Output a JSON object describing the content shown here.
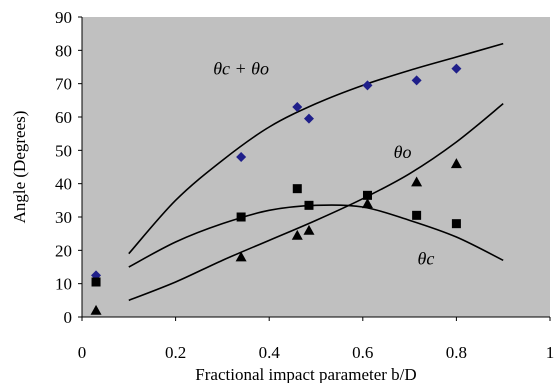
{
  "chart_data": {
    "type": "scatter",
    "xlabel": "Fractional impact parameter b/D",
    "ylabel": "Angle (Degrees)",
    "xlim": [
      0,
      1
    ],
    "ylim": [
      0,
      90
    ],
    "x_ticks": [
      "0",
      "0.2",
      "0.4",
      "0.6",
      "0.8",
      "1"
    ],
    "y_ticks": [
      "0",
      "10",
      "20",
      "30",
      "40",
      "50",
      "60",
      "70",
      "80",
      "90"
    ],
    "plot_background": "#c0c0c0",
    "grid": false,
    "series": [
      {
        "marker": "diamond",
        "color": "#1f1f8a",
        "x": [
          0.03,
          0.34,
          0.46,
          0.485,
          0.61,
          0.715,
          0.8
        ],
        "y": [
          12.5,
          48,
          63,
          59.5,
          69.5,
          71,
          74.5
        ]
      },
      {
        "marker": "square",
        "color": "#000000",
        "x": [
          0.03,
          0.34,
          0.46,
          0.485,
          0.61,
          0.715,
          0.8
        ],
        "y": [
          10.5,
          30,
          38.5,
          33.5,
          36.5,
          30.5,
          28
        ]
      },
      {
        "marker": "triangle",
        "color": "#000000",
        "x": [
          0.03,
          0.34,
          0.46,
          0.485,
          0.61,
          0.715,
          0.8
        ],
        "y": [
          2,
          18,
          24.5,
          26,
          34,
          40.5,
          46
        ]
      }
    ],
    "curves": [
      {
        "x": [
          0.1,
          0.2,
          0.3,
          0.4,
          0.5,
          0.6,
          0.7,
          0.8,
          0.9
        ],
        "y": [
          19,
          35,
          47,
          57,
          64,
          69.5,
          74,
          78,
          82
        ]
      },
      {
        "x": [
          0.1,
          0.2,
          0.3,
          0.4,
          0.5,
          0.6,
          0.7,
          0.8,
          0.9
        ],
        "y": [
          15,
          22.5,
          28,
          32,
          33.5,
          33,
          29,
          24,
          17
        ]
      },
      {
        "x": [
          0.1,
          0.2,
          0.3,
          0.4,
          0.5,
          0.6,
          0.7,
          0.8,
          0.9
        ],
        "y": [
          5,
          10.5,
          17,
          23,
          29,
          35.5,
          43,
          52.5,
          64
        ]
      }
    ],
    "annotations": [
      {
        "text": "θc + θo",
        "x": 0.34,
        "y": 74.5
      },
      {
        "text": "θo",
        "x": 0.685,
        "y": 49.5
      },
      {
        "text": "θc",
        "x": 0.735,
        "y": 17.5
      }
    ]
  }
}
